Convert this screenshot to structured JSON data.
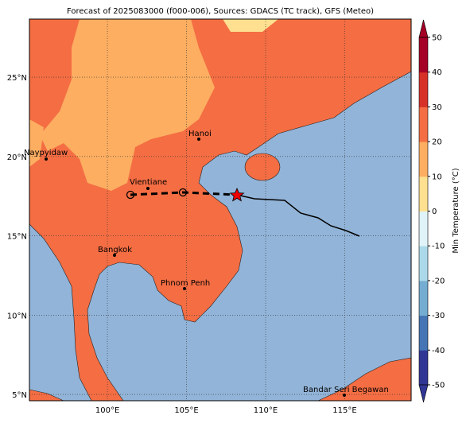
{
  "title": "Forecast of 2025083000 (f000-006), Sources: GDACS (TC track), GFS (Meteo)",
  "map": {
    "lonlim": [
      95.07,
      119.2
    ],
    "latlim": [
      4.6,
      28.66
    ],
    "lon_ticks": [
      {
        "value": 100,
        "label": "100°E"
      },
      {
        "value": 105,
        "label": "105°E"
      },
      {
        "value": 110,
        "label": "110°E"
      },
      {
        "value": 115,
        "label": "115°E"
      }
    ],
    "lat_ticks": [
      {
        "value": 5,
        "label": "5°N"
      },
      {
        "value": 10,
        "label": "10°N"
      },
      {
        "value": 15,
        "label": "15°N"
      },
      {
        "value": 20,
        "label": "20°N"
      },
      {
        "value": 25,
        "label": "25°N"
      }
    ],
    "cities": [
      "Naypyidaw",
      "Hanoi",
      "Vientiane",
      "Bangkok",
      "Phnom Penh",
      "Bandar Seri Begawan"
    ]
  },
  "colorbar": {
    "label": "Min Temperature (°C)",
    "lim": [
      -50,
      50
    ],
    "ticks": [
      -50,
      -40,
      -30,
      -20,
      -10,
      0,
      10,
      20,
      30,
      40,
      50
    ],
    "colors": [
      "#313695",
      "#4575b4",
      "#74add1",
      "#abd9e9",
      "#e0f3f8",
      "#fee090",
      "#fdae61",
      "#f46d43",
      "#d73027",
      "#a50026"
    ]
  }
}
